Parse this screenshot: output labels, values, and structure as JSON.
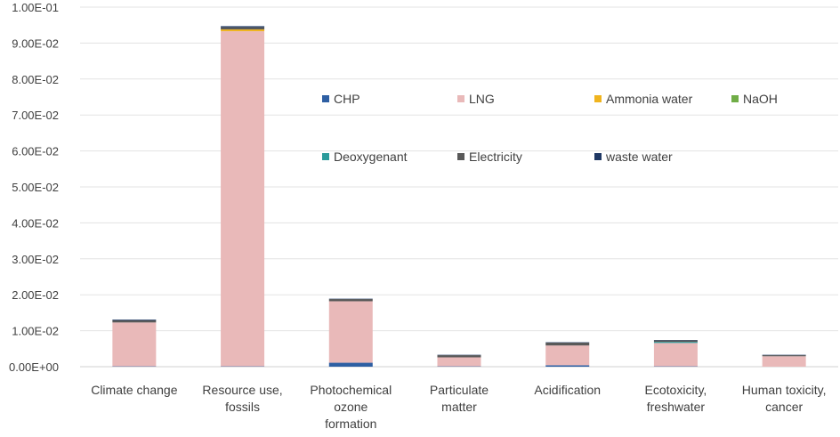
{
  "chart_data": {
    "type": "bar",
    "stacked": true,
    "categories": [
      [
        "Climate change"
      ],
      [
        "Resource use,",
        "fossils"
      ],
      [
        "Photochemical",
        "ozone",
        "formation"
      ],
      [
        "Particulate",
        "matter"
      ],
      [
        "Acidification"
      ],
      [
        "Ecotoxicity,",
        "freshwater"
      ],
      [
        "Human toxicity,",
        "cancer"
      ]
    ],
    "ylim": [
      0,
      0.1
    ],
    "yticks": [
      "0.00E+00",
      "1.00E-02",
      "2.00E-02",
      "3.00E-02",
      "4.00E-02",
      "5.00E-02",
      "6.00E-02",
      "7.00E-02",
      "8.00E-02",
      "9.00E-02",
      "1.00E-01"
    ],
    "grid": true,
    "legend_position": "inside-top-right",
    "series": [
      {
        "name": "CHP",
        "color": "#2e5fa3",
        "values": [
          0.0001,
          0.0001,
          0.0011,
          0.0001,
          0.0004,
          0.0001,
          0.0
        ]
      },
      {
        "name": "LNG",
        "color": "#e9b9b9",
        "values": [
          0.0122,
          0.0932,
          0.0171,
          0.0025,
          0.0055,
          0.0065,
          0.0029
        ]
      },
      {
        "name": "Ammonia water",
        "color": "#f0b41e",
        "values": [
          0.0,
          0.0005,
          0.0,
          0.0,
          0.0,
          0.0,
          0.0
        ]
      },
      {
        "name": "NaOH",
        "color": "#70ad47",
        "values": [
          0.0,
          0.0,
          0.0,
          0.0,
          0.0,
          0.0,
          0.0
        ]
      },
      {
        "name": "Deoxygenant",
        "color": "#2b9b9b",
        "values": [
          0.0,
          0.0,
          0.0,
          0.0,
          0.0,
          0.0003,
          0.0
        ]
      },
      {
        "name": "Electricity",
        "color": "#595959",
        "values": [
          0.0006,
          0.0006,
          0.0006,
          0.0006,
          0.0008,
          0.0004,
          0.0003
        ]
      },
      {
        "name": "waste water",
        "color": "#1f3864",
        "values": [
          0.0002,
          0.0003,
          0.0001,
          0.0001,
          0.0001,
          0.0001,
          0.0001
        ]
      }
    ]
  }
}
